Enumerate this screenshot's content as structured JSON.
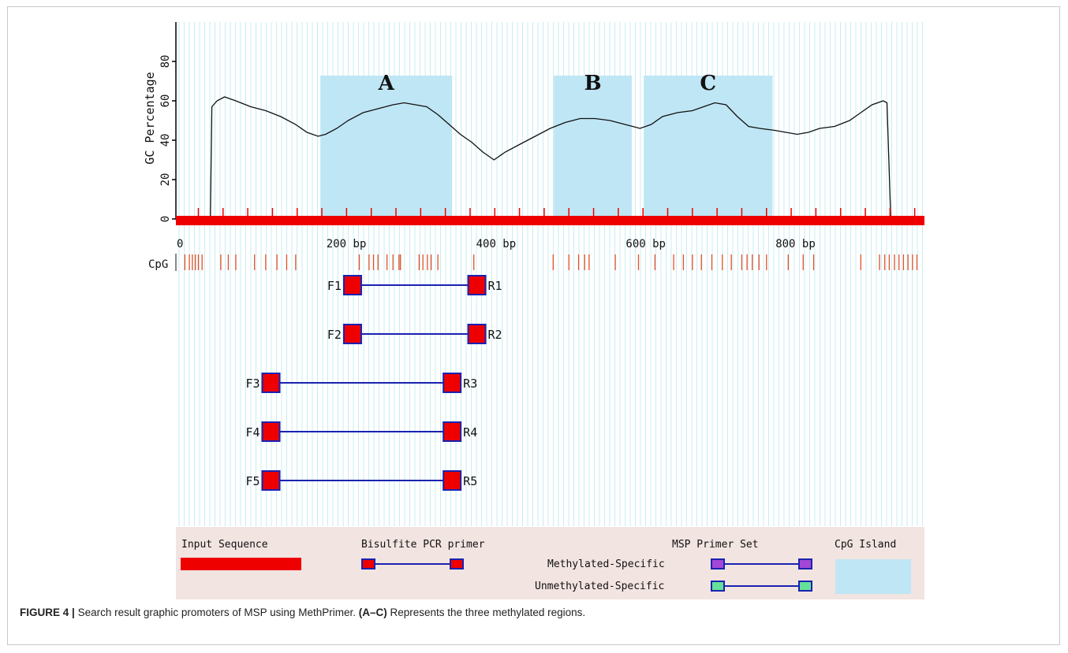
{
  "chart_data": {
    "type": "line",
    "ylabel": "GC Percentage",
    "y_ticks": [
      "0",
      "20",
      "40",
      "60",
      "80"
    ],
    "ylim": [
      0,
      100
    ],
    "xlim": [
      0,
      1000
    ],
    "x_ticks": [
      {
        "value": 0,
        "label": "0"
      },
      {
        "value": 200,
        "label": "200 bp"
      },
      {
        "value": 400,
        "label": "400 bp"
      },
      {
        "value": 600,
        "label": "600 bp"
      },
      {
        "value": 800,
        "label": "800 bp"
      }
    ],
    "sequence_length": 1000,
    "gc_curve": [
      [
        0,
        0
      ],
      [
        46,
        0
      ],
      [
        48,
        57
      ],
      [
        55,
        60
      ],
      [
        65,
        62
      ],
      [
        80,
        60
      ],
      [
        100,
        57
      ],
      [
        120,
        55
      ],
      [
        140,
        52
      ],
      [
        160,
        48
      ],
      [
        175,
        44
      ],
      [
        190,
        42
      ],
      [
        200,
        43
      ],
      [
        215,
        46
      ],
      [
        230,
        50
      ],
      [
        250,
        54
      ],
      [
        270,
        56
      ],
      [
        290,
        58
      ],
      [
        305,
        59
      ],
      [
        320,
        58
      ],
      [
        335,
        57
      ],
      [
        350,
        53
      ],
      [
        365,
        48
      ],
      [
        380,
        43
      ],
      [
        395,
        39
      ],
      [
        410,
        34
      ],
      [
        425,
        30
      ],
      [
        440,
        34
      ],
      [
        460,
        38
      ],
      [
        480,
        42
      ],
      [
        500,
        46
      ],
      [
        520,
        49
      ],
      [
        540,
        51
      ],
      [
        560,
        51
      ],
      [
        580,
        50
      ],
      [
        600,
        48
      ],
      [
        620,
        46
      ],
      [
        635,
        48
      ],
      [
        650,
        52
      ],
      [
        670,
        54
      ],
      [
        690,
        55
      ],
      [
        705,
        57
      ],
      [
        720,
        59
      ],
      [
        735,
        58
      ],
      [
        750,
        52
      ],
      [
        765,
        47
      ],
      [
        780,
        46
      ],
      [
        800,
        45
      ],
      [
        815,
        44
      ],
      [
        830,
        43
      ],
      [
        845,
        44
      ],
      [
        860,
        46
      ],
      [
        880,
        47
      ],
      [
        900,
        50
      ],
      [
        915,
        54
      ],
      [
        930,
        58
      ],
      [
        945,
        60
      ],
      [
        950,
        59
      ],
      [
        955,
        0
      ],
      [
        1000,
        0
      ]
    ],
    "cpg_islands": [
      {
        "label": "A",
        "start": 193,
        "end": 369
      },
      {
        "label": "B",
        "start": 505,
        "end": 609
      },
      {
        "label": "C",
        "start": 625,
        "end": 797
      }
    ],
    "cpg_row_label": "CpG",
    "cpg_sites": [
      12,
      18,
      22,
      26,
      30,
      35,
      60,
      70,
      80,
      105,
      120,
      135,
      148,
      160,
      245,
      258,
      264,
      270,
      282,
      290,
      298,
      300,
      325,
      330,
      336,
      341,
      350,
      398,
      504,
      525,
      538,
      546,
      552,
      587,
      618,
      640,
      665,
      678,
      690,
      702,
      716,
      730,
      742,
      756,
      763,
      770,
      779,
      789,
      818,
      838,
      852,
      915,
      940,
      947,
      953,
      960,
      966,
      972,
      978,
      984,
      990
    ],
    "primers": [
      {
        "forward": "F1",
        "reverse": "R1",
        "start": 236,
        "end": 402
      },
      {
        "forward": "F2",
        "reverse": "R2",
        "start": 236,
        "end": 402
      },
      {
        "forward": "F3",
        "reverse": "R3",
        "start": 127,
        "end": 369
      },
      {
        "forward": "F4",
        "reverse": "R4",
        "start": 127,
        "end": 369
      },
      {
        "forward": "F5",
        "reverse": "R5",
        "start": 127,
        "end": 369
      }
    ]
  },
  "legend": {
    "input_sequence": "Input Sequence",
    "bisulfite_primer": "Bisulfite PCR primer",
    "msp_primer_set": "MSP Primer Set",
    "methylated": "Methylated-Specific",
    "unmethylated": "Unmethylated-Specific",
    "cpg_island": "CpG Island"
  },
  "colors": {
    "island": "#bfe6f5",
    "sequence": "#ee0000",
    "primer_fill": "#ee0000",
    "primer_border": "#1a22b0",
    "line": "#1a22b0",
    "methylated_box": "#a347d6",
    "unmethylated_box": "#66e099",
    "legend_bg": "#f2e4e1",
    "grid": "#c9ecf3"
  },
  "caption": {
    "label": "FIGURE 4 |",
    "text": "Search result graphic promoters of MSP using MethPrimer.",
    "bold_ref": "(A–C)",
    "text2": "Represents the three methylated regions."
  }
}
